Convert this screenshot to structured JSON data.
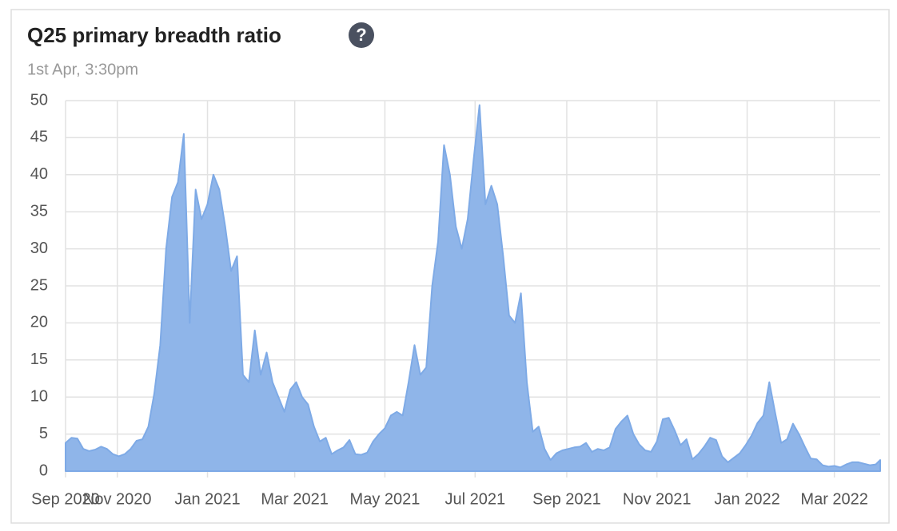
{
  "chart_data": {
    "type": "area",
    "title": "Q25 primary breadth ratio",
    "subtitle": "1st Apr, 3:30pm",
    "help_icon": "?",
    "color": "#8fb5e9",
    "line_color": "#7eaae6",
    "grid": true,
    "x": [
      "2020-09-27",
      "2020-10-01",
      "2020-10-05",
      "2020-10-09",
      "2020-10-13",
      "2020-10-17",
      "2020-10-21",
      "2020-10-25",
      "2020-10-29",
      "2020-11-02",
      "2020-11-06",
      "2020-11-10",
      "2020-11-14",
      "2020-11-18",
      "2020-11-22",
      "2020-11-26",
      "2020-11-30",
      "2020-12-04",
      "2020-12-08",
      "2020-12-12",
      "2020-12-16",
      "2020-12-20",
      "2020-12-24",
      "2020-12-28",
      "2021-01-01",
      "2021-01-05",
      "2021-01-09",
      "2021-01-13",
      "2021-01-17",
      "2021-01-21",
      "2021-01-25",
      "2021-01-29",
      "2021-02-02",
      "2021-02-06",
      "2021-02-10",
      "2021-02-14",
      "2021-02-18",
      "2021-02-22",
      "2021-02-26",
      "2021-03-02",
      "2021-03-06",
      "2021-03-10",
      "2021-03-14",
      "2021-03-18",
      "2021-03-22",
      "2021-03-26",
      "2021-03-30",
      "2021-04-03",
      "2021-04-07",
      "2021-04-11",
      "2021-04-15",
      "2021-04-19",
      "2021-04-23",
      "2021-04-27",
      "2021-05-01",
      "2021-05-05",
      "2021-05-09",
      "2021-05-13",
      "2021-05-17",
      "2021-05-21",
      "2021-05-25",
      "2021-05-29",
      "2021-06-02",
      "2021-06-06",
      "2021-06-10",
      "2021-06-14",
      "2021-06-18",
      "2021-06-22",
      "2021-06-26",
      "2021-06-30",
      "2021-07-04",
      "2021-07-08",
      "2021-07-12",
      "2021-07-16",
      "2021-07-20",
      "2021-07-24",
      "2021-07-28",
      "2021-08-01",
      "2021-08-05",
      "2021-08-09",
      "2021-08-13",
      "2021-08-17",
      "2021-08-21",
      "2021-08-25",
      "2021-08-29",
      "2021-09-02",
      "2021-09-06",
      "2021-09-10",
      "2021-09-14",
      "2021-09-18",
      "2021-09-22",
      "2021-09-26",
      "2021-09-30",
      "2021-10-04",
      "2021-10-08",
      "2021-10-12",
      "2021-10-16",
      "2021-10-20",
      "2021-10-24",
      "2021-10-28",
      "2021-11-01",
      "2021-11-05",
      "2021-11-09",
      "2021-11-13",
      "2021-11-17",
      "2021-11-21",
      "2021-11-25",
      "2021-11-29",
      "2021-12-03",
      "2021-12-07",
      "2021-12-11",
      "2021-12-15",
      "2021-12-19",
      "2021-12-23",
      "2021-12-27",
      "2021-12-31",
      "2022-01-04",
      "2022-01-08",
      "2022-01-12",
      "2022-01-16",
      "2022-01-20",
      "2022-01-24",
      "2022-01-28",
      "2022-02-01",
      "2022-02-05",
      "2022-02-09",
      "2022-02-13",
      "2022-02-17",
      "2022-02-21",
      "2022-02-25",
      "2022-03-01",
      "2022-03-05",
      "2022-03-09",
      "2022-03-13",
      "2022-03-17",
      "2022-03-21",
      "2022-03-25",
      "2022-03-29",
      "2022-04-01"
    ],
    "values": [
      3.8,
      4.5,
      4.4,
      3.0,
      2.7,
      2.9,
      3.3,
      3.0,
      2.3,
      2.0,
      2.3,
      3.0,
      4.1,
      4.3,
      6.0,
      10.5,
      17,
      30,
      37,
      39,
      45.5,
      20,
      38,
      34,
      36,
      40,
      38,
      33,
      27,
      29,
      13,
      12,
      19,
      13,
      16,
      12,
      10,
      8,
      11,
      12,
      10,
      9,
      6,
      4,
      4.5,
      2.3,
      2.8,
      3.2,
      4.2,
      2.3,
      2.2,
      2.5,
      4,
      5,
      5.8,
      7.5,
      8,
      7.5,
      12,
      17,
      13,
      14,
      25,
      31,
      44,
      40,
      33,
      30,
      34,
      42,
      49.4,
      36,
      38.5,
      36,
      29,
      21,
      20,
      24,
      12,
      5.3,
      6,
      3.0,
      1.5,
      2.4,
      2.8,
      3.0,
      3.2,
      3.3,
      3.8,
      2.6,
      3.0,
      2.8,
      3.2,
      5.7,
      6.7,
      7.5,
      5.0,
      3.6,
      2.8,
      2.6,
      4.0,
      7.0,
      7.2,
      5.5,
      3.5,
      4.3,
      1.6,
      2.3,
      3.3,
      4.5,
      4.2,
      2.0,
      1.2,
      1.8,
      2.4,
      3.5,
      4.8,
      6.5,
      7.5,
      12,
      7.8,
      3.8,
      4.3,
      6.4,
      5.0,
      3.3,
      1.7,
      1.6,
      0.8,
      0.6,
      0.7,
      0.5,
      0.9,
      1.2,
      1.2,
      1.0,
      0.8,
      0.9,
      1.5
    ],
    "xlim": [
      "2020-09-27",
      "2022-04-01"
    ],
    "xticks": [
      {
        "value": "2020-09-27",
        "label": "Sep 2020"
      },
      {
        "value": "2020-11-01",
        "label": "Nov 2020"
      },
      {
        "value": "2021-01-01",
        "label": "Jan 2021"
      },
      {
        "value": "2021-03-01",
        "label": "Mar 2021"
      },
      {
        "value": "2021-05-01",
        "label": "May 2021"
      },
      {
        "value": "2021-07-01",
        "label": "Jul 2021"
      },
      {
        "value": "2021-09-01",
        "label": "Sep 2021"
      },
      {
        "value": "2021-11-01",
        "label": "Nov 2021"
      },
      {
        "value": "2022-01-01",
        "label": "Jan 2022"
      },
      {
        "value": "2022-03-01",
        "label": "Mar 2022"
      }
    ],
    "ylim": [
      0,
      50
    ],
    "yticks": [
      0,
      5,
      10,
      15,
      20,
      25,
      30,
      35,
      40,
      45,
      50
    ]
  }
}
